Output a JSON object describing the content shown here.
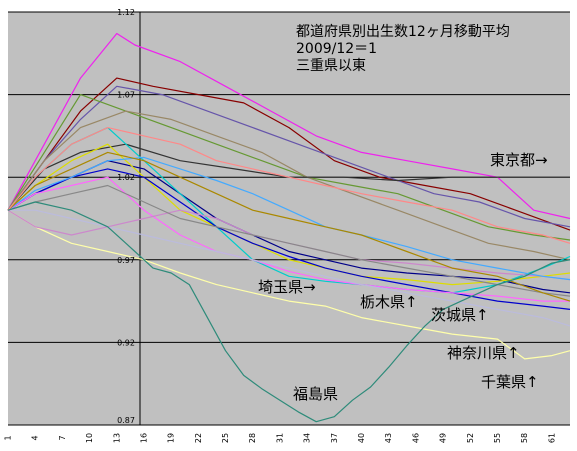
{
  "chart_data": {
    "type": "line",
    "title_lines": [
      "都道府県別出生数12ヶ月移動平均",
      "2009/12＝1",
      "三重県以東"
    ],
    "ylim": [
      0.87,
      1.12
    ],
    "y_ticks": [
      0.87,
      0.92,
      0.97,
      1.02,
      1.07,
      1.12
    ],
    "y_tick_labels": [
      "0.87",
      "0.92",
      "0.97",
      "1.02",
      "1.07",
      "1.12"
    ],
    "xlim": [
      1,
      63
    ],
    "x_ticks": [
      1,
      4,
      7,
      10,
      13,
      16,
      19,
      22,
      25,
      28,
      31,
      34,
      37,
      40,
      43,
      46,
      49,
      52,
      55,
      58,
      61
    ],
    "x_tick_labels": [
      "1",
      "4",
      "7",
      "10",
      "13",
      "16",
      "19",
      "22",
      "25",
      "28",
      "31",
      "34",
      "37",
      "40",
      "43",
      "46",
      "49",
      "52",
      "55",
      "58",
      "61"
    ],
    "grid": true,
    "annotations": [
      "東京都→",
      "埼玉県→",
      "栃木県↑",
      "茨城県↑",
      "神奈川県↑",
      "千葉県↑",
      "福島県"
    ],
    "series": [
      {
        "color": "#ee22ee",
        "x": [
          1,
          5,
          9,
          13,
          15,
          20,
          25,
          30,
          35,
          40,
          45,
          50,
          55,
          59,
          63
        ],
        "y": [
          1.0,
          1.04,
          1.08,
          1.107,
          1.1,
          1.09,
          1.075,
          1.06,
          1.045,
          1.035,
          1.03,
          1.025,
          1.02,
          1.0,
          0.995
        ]
      },
      {
        "color": "#880000",
        "x": [
          1,
          5,
          9,
          13,
          17,
          22,
          27,
          32,
          37,
          42,
          47,
          52,
          57,
          63
        ],
        "y": [
          1.0,
          1.03,
          1.06,
          1.08,
          1.075,
          1.07,
          1.065,
          1.05,
          1.03,
          1.02,
          1.015,
          1.01,
          1.0,
          0.988
        ]
      },
      {
        "color": "#6655aa",
        "x": [
          1,
          5,
          9,
          13,
          18,
          23,
          28,
          33,
          38,
          43,
          48,
          53,
          58,
          63
        ],
        "y": [
          1.0,
          1.03,
          1.055,
          1.075,
          1.07,
          1.06,
          1.05,
          1.04,
          1.03,
          1.02,
          1.01,
          1.005,
          0.995,
          0.99
        ]
      },
      {
        "color": "#669933",
        "x": [
          1,
          5,
          9,
          14,
          19,
          24,
          29,
          34,
          39,
          44,
          49,
          54,
          59,
          63
        ],
        "y": [
          1.0,
          1.035,
          1.07,
          1.06,
          1.05,
          1.04,
          1.03,
          1.02,
          1.015,
          1.01,
          1.0,
          0.99,
          0.985,
          0.982
        ]
      },
      {
        "color": "#998866",
        "x": [
          1,
          5,
          9,
          14,
          19,
          24,
          29,
          34,
          39,
          44,
          49,
          54,
          59,
          63
        ],
        "y": [
          1.0,
          1.03,
          1.05,
          1.06,
          1.055,
          1.045,
          1.035,
          1.02,
          1.01,
          1.0,
          0.99,
          0.98,
          0.975,
          0.97
        ]
      },
      {
        "color": "#333333",
        "x": [
          1,
          5,
          9,
          14,
          20,
          26,
          32,
          38,
          44,
          50,
          56,
          63
        ],
        "y": [
          1.0,
          1.025,
          1.035,
          1.04,
          1.03,
          1.025,
          1.02,
          1.02,
          1.018,
          1.02,
          1.02,
          1.02
        ]
      },
      {
        "color": "#000088",
        "x": [
          1,
          4,
          8,
          12,
          16,
          20,
          24,
          28,
          32,
          36,
          40,
          45,
          50,
          55,
          60,
          63
        ],
        "y": [
          1.0,
          1.01,
          1.02,
          1.03,
          1.025,
          1.01,
          0.995,
          0.985,
          0.975,
          0.97,
          0.965,
          0.962,
          0.96,
          0.958,
          0.952,
          0.95
        ]
      },
      {
        "color": "#00cccc",
        "x": [
          1,
          4,
          8,
          12,
          16,
          20,
          24,
          28,
          32,
          36,
          40,
          45,
          50,
          55,
          60,
          63
        ],
        "y": [
          1.0,
          1.02,
          1.04,
          1.05,
          1.03,
          1.01,
          0.99,
          0.97,
          0.96,
          0.957,
          0.955,
          0.952,
          0.95,
          0.955,
          0.965,
          0.972
        ]
      },
      {
        "color": "#dddd00",
        "x": [
          1,
          4,
          8,
          12,
          16,
          20,
          24,
          28,
          32,
          36,
          40,
          45,
          50,
          55,
          60,
          63
        ],
        "y": [
          1.0,
          1.015,
          1.03,
          1.04,
          1.02,
          1.0,
          0.99,
          0.98,
          0.97,
          0.965,
          0.96,
          0.958,
          0.955,
          0.957,
          0.96,
          0.962
        ]
      },
      {
        "color": "#0000cc",
        "x": [
          1,
          4,
          8,
          12,
          16,
          20,
          24,
          28,
          32,
          36,
          40,
          45,
          50,
          55,
          60,
          63
        ],
        "y": [
          1.0,
          1.01,
          1.02,
          1.025,
          1.02,
          1.005,
          0.99,
          0.98,
          0.972,
          0.965,
          0.96,
          0.955,
          0.95,
          0.945,
          0.942,
          0.94
        ]
      },
      {
        "color": "#ff66ff",
        "x": [
          1,
          4,
          8,
          12,
          16,
          20,
          24,
          28,
          32,
          36,
          40,
          45,
          50,
          55,
          60,
          63
        ],
        "y": [
          1.0,
          1.01,
          1.015,
          1.02,
          1.0,
          0.985,
          0.975,
          0.97,
          0.963,
          0.958,
          0.955,
          0.952,
          0.95,
          0.948,
          0.945,
          0.945
        ]
      },
      {
        "color": "#ffffaa",
        "x": [
          1,
          4,
          8,
          12,
          16,
          20,
          24,
          28,
          32,
          36,
          40,
          45,
          50,
          55,
          58,
          61,
          63
        ],
        "y": [
          1.0,
          0.99,
          0.98,
          0.975,
          0.97,
          0.962,
          0.955,
          0.95,
          0.945,
          0.942,
          0.935,
          0.93,
          0.925,
          0.922,
          0.91,
          0.912,
          0.915
        ]
      },
      {
        "color": "#bbbbdd",
        "x": [
          1,
          4,
          8,
          12,
          16,
          20,
          24,
          28,
          32,
          36,
          40,
          45,
          50,
          55,
          60,
          63
        ],
        "y": [
          1.0,
          1.0,
          0.995,
          0.99,
          0.985,
          0.98,
          0.975,
          0.97,
          0.965,
          0.96,
          0.955,
          0.95,
          0.945,
          0.94,
          0.935,
          0.93
        ]
      },
      {
        "color": "#cc88cc",
        "x": [
          1,
          4,
          8,
          12,
          16,
          20,
          24,
          28,
          32,
          36,
          40,
          45,
          50,
          55,
          60,
          63
        ],
        "y": [
          1.0,
          0.99,
          0.985,
          0.99,
          0.995,
          1.0,
          0.995,
          0.985,
          0.98,
          0.975,
          0.97,
          0.968,
          0.965,
          0.962,
          0.96,
          0.958
        ]
      },
      {
        "color": "#888888",
        "x": [
          1,
          4,
          8,
          12,
          16,
          20,
          24,
          28,
          32,
          36,
          40,
          45,
          50,
          55,
          60,
          63
        ],
        "y": [
          1.0,
          1.005,
          1.01,
          1.015,
          1.005,
          0.995,
          0.99,
          0.985,
          0.98,
          0.975,
          0.97,
          0.965,
          0.96,
          0.955,
          0.95,
          0.948
        ]
      },
      {
        "color": "#44aaff",
        "x": [
          1,
          4,
          8,
          12,
          16,
          20,
          24,
          28,
          32,
          36,
          40,
          45,
          50,
          55,
          60,
          63
        ],
        "y": [
          1.0,
          1.012,
          1.02,
          1.03,
          1.032,
          1.025,
          1.018,
          1.01,
          1.0,
          0.99,
          0.985,
          0.978,
          0.97,
          0.965,
          0.96,
          0.958
        ]
      },
      {
        "color": "#aa8800",
        "x": [
          1,
          4,
          8,
          12,
          16,
          20,
          24,
          28,
          32,
          36,
          40,
          45,
          50,
          55,
          60,
          63
        ],
        "y": [
          1.0,
          1.015,
          1.025,
          1.035,
          1.03,
          1.02,
          1.01,
          1.0,
          0.995,
          0.99,
          0.985,
          0.975,
          0.965,
          0.96,
          0.95,
          0.945
        ]
      },
      {
        "color": "#ff8888",
        "x": [
          1,
          4,
          8,
          12,
          16,
          20,
          24,
          28,
          32,
          36,
          40,
          45,
          50,
          55,
          60,
          63
        ],
        "y": [
          1.0,
          1.02,
          1.04,
          1.05,
          1.045,
          1.04,
          1.03,
          1.025,
          1.02,
          1.015,
          1.01,
          1.005,
          1.0,
          0.99,
          0.985,
          0.98
        ]
      },
      {
        "color": "#2e8b7a",
        "x": [
          1,
          4,
          8,
          12,
          15,
          17,
          19,
          21,
          23,
          25,
          27,
          29,
          31,
          33,
          35,
          37,
          39,
          41,
          43,
          45,
          47,
          49,
          51,
          53,
          55,
          58,
          61,
          63
        ],
        "y": [
          1.0,
          1.005,
          1.0,
          0.99,
          0.975,
          0.965,
          0.962,
          0.955,
          0.935,
          0.915,
          0.9,
          0.892,
          0.885,
          0.878,
          0.872,
          0.875,
          0.885,
          0.893,
          0.905,
          0.918,
          0.93,
          0.94,
          0.945,
          0.95,
          0.955,
          0.96,
          0.968,
          0.97
        ]
      }
    ]
  }
}
